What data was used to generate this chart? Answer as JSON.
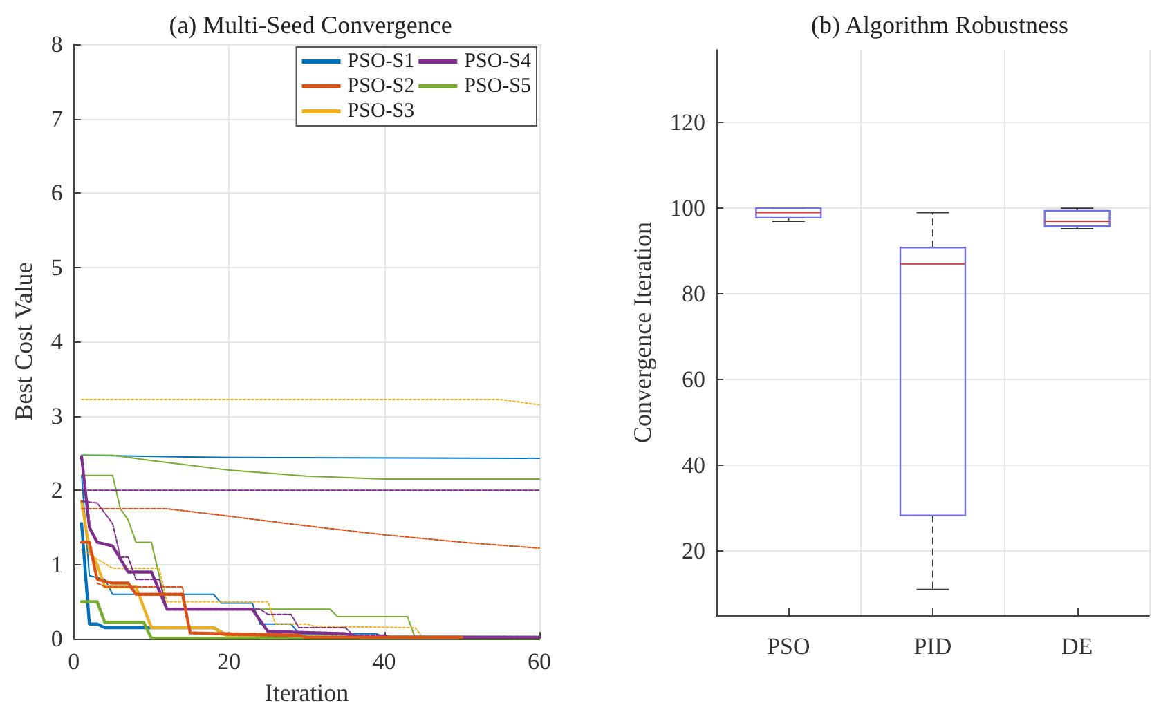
{
  "chart_data": [
    {
      "type": "line",
      "title": "(a) Multi-Seed Convergence",
      "xlabel": "Iteration",
      "ylabel": "Best Cost Value",
      "xlim": [
        0,
        60
      ],
      "xticks": [
        0,
        20,
        40,
        60
      ],
      "ylim": [
        0,
        8
      ],
      "yticks": [
        0,
        1,
        2,
        3,
        4,
        5,
        6,
        7,
        8
      ],
      "grid": true,
      "legend": "top right",
      "marker": "none",
      "series": [
        {
          "name": "PSO-S1",
          "color": "#0072bd",
          "line_style": "solid",
          "x": [
            1,
            2,
            3,
            4,
            18,
            20,
            60
          ],
          "values": [
            1.55,
            0.2,
            0.2,
            0.15,
            0.15,
            0.03,
            0.02
          ]
        },
        {
          "name": "PSO-S2",
          "color": "#d95319",
          "line_style": "dashed",
          "x": [
            1,
            2,
            3,
            5,
            7,
            8,
            14,
            15,
            29,
            30,
            50
          ],
          "values": [
            1.3,
            1.3,
            0.8,
            0.75,
            0.75,
            0.6,
            0.6,
            0.08,
            0.05,
            0.02,
            0.02
          ]
        },
        {
          "name": "PSO-S3",
          "color": "#edb120",
          "line_style": "dotted",
          "x": [
            1,
            2,
            3,
            4,
            8,
            10,
            18,
            20,
            60
          ],
          "values": [
            1.85,
            1.2,
            1.0,
            0.7,
            0.7,
            0.15,
            0.15,
            0.03,
            0.02
          ]
        },
        {
          "name": "PSO-S4",
          "color": "#7e2f8e",
          "line_style": "dashed",
          "x": [
            1,
            2,
            3,
            5,
            7,
            10,
            12,
            23,
            25,
            35,
            37,
            60
          ],
          "values": [
            2.45,
            1.5,
            1.3,
            1.25,
            0.9,
            0.9,
            0.4,
            0.4,
            0.1,
            0.07,
            0.02,
            0.02
          ]
        },
        {
          "name": "PSO-S5",
          "color": "#77ac30",
          "line_style": "solid",
          "x": [
            1,
            3,
            4,
            9,
            10,
            60
          ],
          "values": [
            0.5,
            0.5,
            0.22,
            0.22,
            0.01,
            0.01
          ]
        },
        {
          "color": "#0072bd",
          "line_style": "solid",
          "x": [
            1,
            20,
            60
          ],
          "values": [
            2.47,
            2.44,
            2.43
          ]
        },
        {
          "color": "#0072bd",
          "line_style": "solid",
          "x": [
            1,
            2,
            4,
            5,
            18,
            19,
            23,
            24,
            28,
            29,
            39,
            40,
            60
          ],
          "values": [
            2.2,
            0.85,
            0.8,
            0.6,
            0.6,
            0.48,
            0.48,
            0.2,
            0.2,
            0.07,
            0.07,
            0.02,
            0.01
          ]
        },
        {
          "color": "#77ac30",
          "line_style": "solid",
          "x": [
            1,
            5,
            10,
            20,
            30,
            40,
            60
          ],
          "values": [
            2.47,
            2.47,
            2.4,
            2.27,
            2.19,
            2.15,
            2.15
          ]
        },
        {
          "color": "#77ac30",
          "line_style": "solid",
          "x": [
            1,
            5,
            6,
            7,
            8,
            10,
            12,
            33,
            34,
            43,
            44,
            60
          ],
          "values": [
            2.2,
            2.2,
            1.75,
            1.6,
            1.3,
            1.3,
            0.4,
            0.4,
            0.3,
            0.3,
            0.01,
            0.01
          ]
        },
        {
          "color": "#7e2f8e",
          "line_style": "dashed",
          "x": [
            1,
            60
          ],
          "values": [
            2.0,
            2.0
          ]
        },
        {
          "color": "#7e2f8e",
          "line_style": "dashed",
          "x": [
            1,
            3,
            5,
            6,
            7,
            8,
            11,
            12,
            24,
            25,
            28,
            29,
            35,
            36,
            40,
            41,
            60
          ],
          "values": [
            1.85,
            1.83,
            1.55,
            1.1,
            1.1,
            0.8,
            0.8,
            0.4,
            0.4,
            0.33,
            0.33,
            0.15,
            0.15,
            0.05,
            0.05,
            0.02,
            0.02
          ]
        },
        {
          "color": "#d95319",
          "line_style": "dashed",
          "x": [
            1,
            12,
            20,
            30,
            40,
            50,
            60
          ],
          "values": [
            1.75,
            1.75,
            1.65,
            1.52,
            1.4,
            1.3,
            1.22
          ]
        },
        {
          "color": "#d95319",
          "line_style": "dashed",
          "x": [
            3,
            4,
            14,
            15,
            20,
            30,
            45
          ],
          "values": [
            0.75,
            0.7,
            0.7,
            0.08,
            0.05,
            0.03,
            0.02
          ]
        },
        {
          "color": "#edb120",
          "line_style": "dotted",
          "x": [
            1,
            55,
            60
          ],
          "values": [
            3.22,
            3.22,
            3.15
          ]
        },
        {
          "color": "#edb120",
          "line_style": "dotted",
          "x": [
            1,
            5,
            11,
            12,
            25,
            26,
            30,
            31,
            44,
            45,
            60
          ],
          "values": [
            1.2,
            0.95,
            0.95,
            0.5,
            0.5,
            0.2,
            0.2,
            0.17,
            0.15,
            0.01,
            0.01
          ]
        }
      ]
    },
    {
      "type": "box",
      "title": "(b) Algorithm Robustness",
      "ylabel": "Convergence Iteration",
      "categories": [
        "PSO",
        "PID",
        "DE"
      ],
      "ylim": [
        5,
        137
      ],
      "yticks": [
        20,
        40,
        60,
        80,
        100,
        120
      ],
      "grid": true,
      "series": [
        {
          "color": "#7070e0",
          "boxes": [
            {
              "low": 97,
              "q1": 97.8,
              "median": 99,
              "q3": 100,
              "high": 100
            },
            {
              "low": 11,
              "q1": 28.3,
              "median": 87,
              "q3": 90.8,
              "high": 99
            },
            {
              "low": 95.2,
              "q1": 95.8,
              "median": 97,
              "q3": 99.4,
              "high": 100
            }
          ]
        }
      ]
    }
  ]
}
